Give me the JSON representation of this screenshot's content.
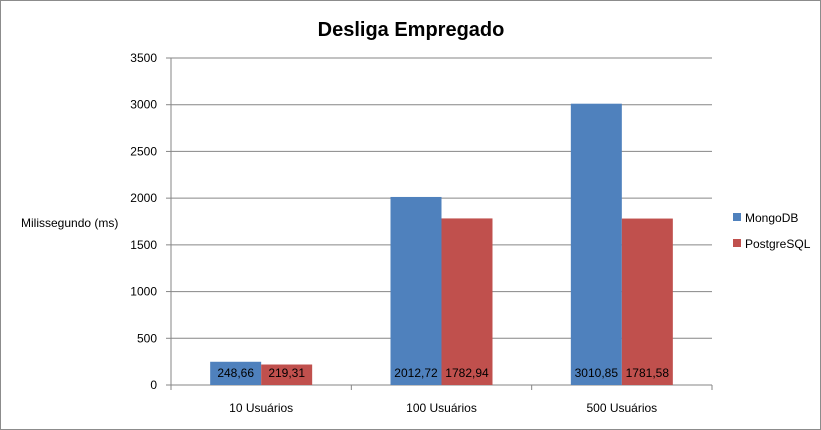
{
  "chart_data": {
    "type": "bar",
    "title": "Desliga Empregado",
    "ylabel": "Milissegundo (ms)",
    "xlabel": "",
    "categories": [
      "10 Usuários",
      "100 Usuários",
      "500 Usuários"
    ],
    "ylim": [
      0,
      3500
    ],
    "yticks": [
      0,
      500,
      1000,
      1500,
      2000,
      2500,
      3000,
      3500
    ],
    "grid": true,
    "legend_position": "right",
    "series": [
      {
        "name": "MongoDB",
        "color": "#4f81bd",
        "values": [
          248.66,
          2012.72,
          3010.85
        ],
        "labels": [
          "248,66",
          "2012,72",
          "3010,85"
        ]
      },
      {
        "name": "PostgreSQL",
        "color": "#c0504d",
        "values": [
          219.31,
          1782.94,
          1781.58
        ],
        "labels": [
          "219,31",
          "1782,94",
          "1781,58"
        ]
      }
    ]
  }
}
